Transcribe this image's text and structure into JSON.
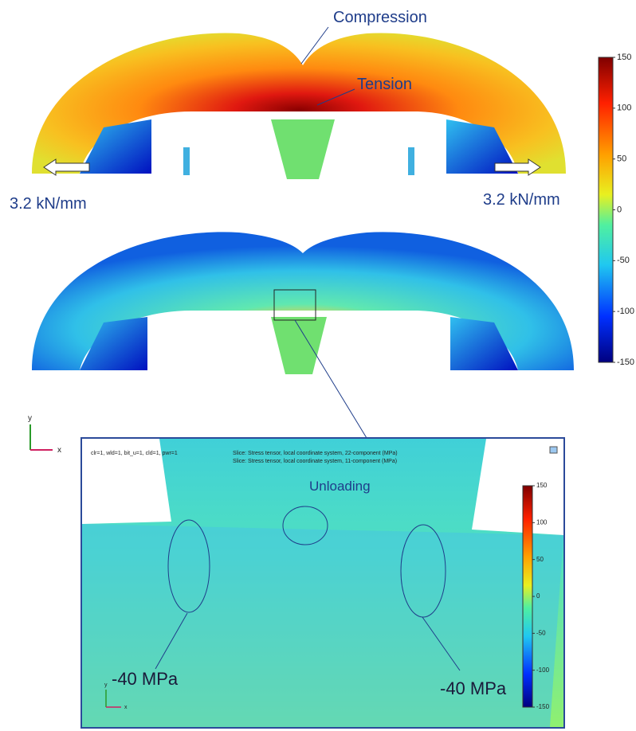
{
  "annotations": {
    "compression": "Compression",
    "tension": "Tension",
    "load_left": "3.2 kN/mm",
    "load_right": "3.2 kN/mm",
    "unloading": "Unloading",
    "stress_left": "-40 MPa",
    "stress_right": "-40 MPa"
  },
  "colorbar": {
    "ticks": [
      150,
      100,
      50,
      0,
      -50,
      -100,
      -150
    ]
  },
  "axes": {
    "y": "y",
    "x": "x"
  },
  "inset": {
    "header_left": "clr=1, wld=1, bit_u=1, cld=1, pwr=1",
    "header_lines": [
      "Slice: Stress tensor, local coordinate system, 22-component (MPa)",
      "Slice: Stress tensor, local coordinate system, 11-component (MPa)"
    ],
    "colorbar_ticks": [
      150,
      100,
      50,
      0,
      -50,
      -100,
      -150
    ],
    "axes": {
      "y": "y",
      "x": "x"
    }
  }
}
